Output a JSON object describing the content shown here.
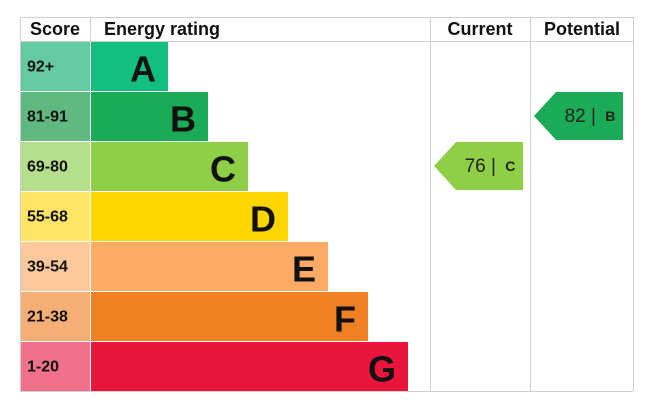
{
  "headers": {
    "score": "Score",
    "rating": "Energy rating",
    "current": "Current",
    "potential": "Potential"
  },
  "bands": [
    {
      "score": "92+",
      "letter": "A",
      "color": "#12bf80",
      "score_color": "#65c9a1"
    },
    {
      "score": "81-91",
      "letter": "B",
      "color": "#1bab56",
      "score_color": "#5fb981"
    },
    {
      "score": "69-80",
      "letter": "C",
      "color": "#8ecf47",
      "score_color": "#b6df8d"
    },
    {
      "score": "55-68",
      "letter": "D",
      "color": "#ffd500",
      "score_color": "#ffe466"
    },
    {
      "score": "39-54",
      "letter": "E",
      "color": "#fcaa65",
      "score_color": "#fdc89c"
    },
    {
      "score": "21-38",
      "letter": "F",
      "color": "#ef8023",
      "score_color": "#f5ae74"
    },
    {
      "score": "1-20",
      "letter": "G",
      "color": "#e9153b",
      "score_color": "#f0728a"
    }
  ],
  "current": {
    "value": 76,
    "separator": "|",
    "rating": "C"
  },
  "potential": {
    "value": 82,
    "separator": "|",
    "rating": "B"
  }
}
